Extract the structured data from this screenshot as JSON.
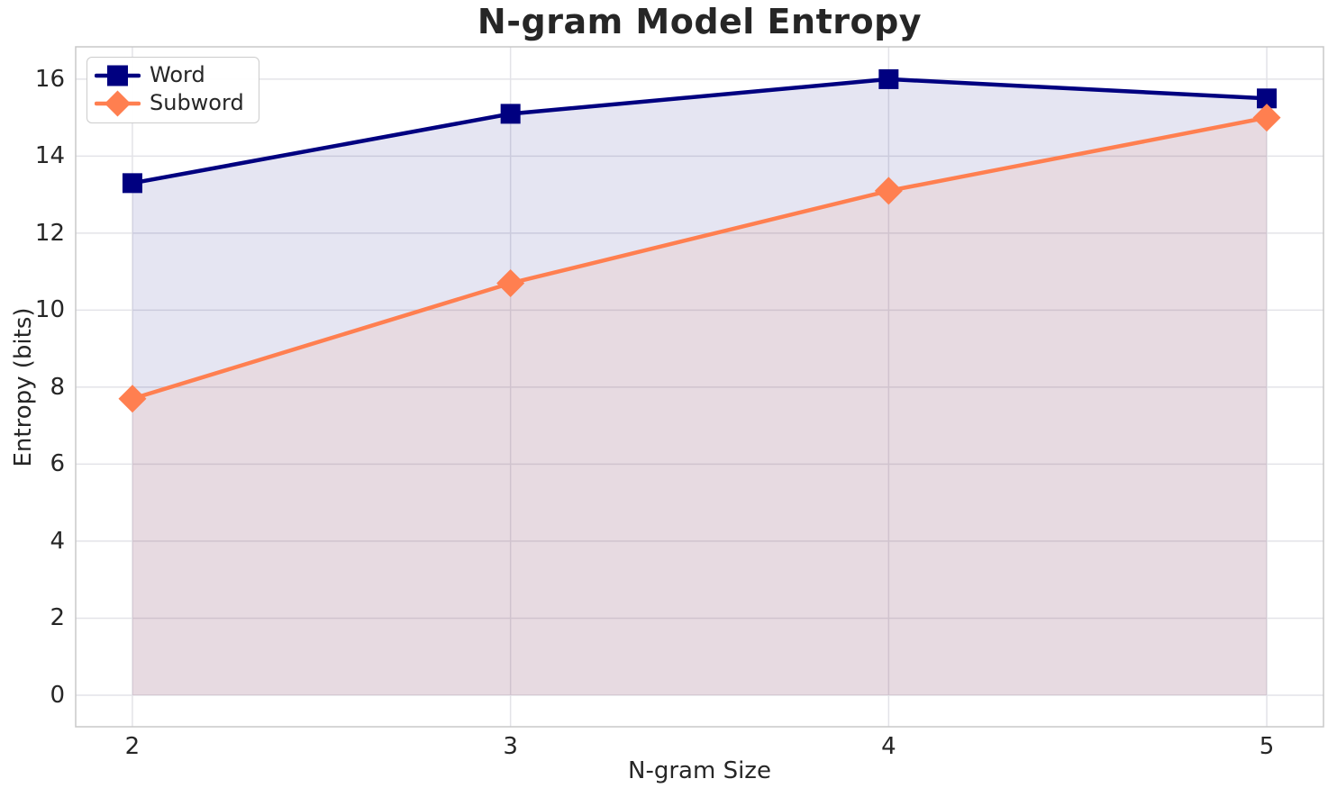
{
  "chart_data": {
    "type": "line",
    "title": "N-gram Model Entropy",
    "xlabel": "N-gram Size",
    "ylabel": "Entropy (bits)",
    "x": [
      2,
      3,
      4,
      5
    ],
    "series": [
      {
        "name": "Word",
        "values": [
          13.3,
          15.1,
          16.0,
          15.5
        ],
        "color": "#000080",
        "marker": "square"
      },
      {
        "name": "Subword",
        "values": [
          7.7,
          10.7,
          13.1,
          15.0
        ],
        "color": "#FF7F50",
        "marker": "diamond"
      }
    ],
    "fill_to_baseline": true,
    "fill_baseline": 0,
    "fill_alpha": 0.1,
    "xticks": [
      2,
      3,
      4,
      5
    ],
    "yticks": [
      0,
      2,
      4,
      6,
      8,
      10,
      12,
      14,
      16
    ],
    "xlim": [
      1.85,
      5.15
    ],
    "ylim": [
      -0.82,
      16.84
    ],
    "grid": true,
    "legend_position": "upper-left",
    "legend_labels": [
      "Word",
      "Subword"
    ],
    "colors": {
      "word_line": "#000080",
      "subword_line": "#FF7F50",
      "text": "#262626",
      "grid": "#e3e3e8",
      "plot_border": "#c8c8c8",
      "background": "#ffffff"
    }
  }
}
